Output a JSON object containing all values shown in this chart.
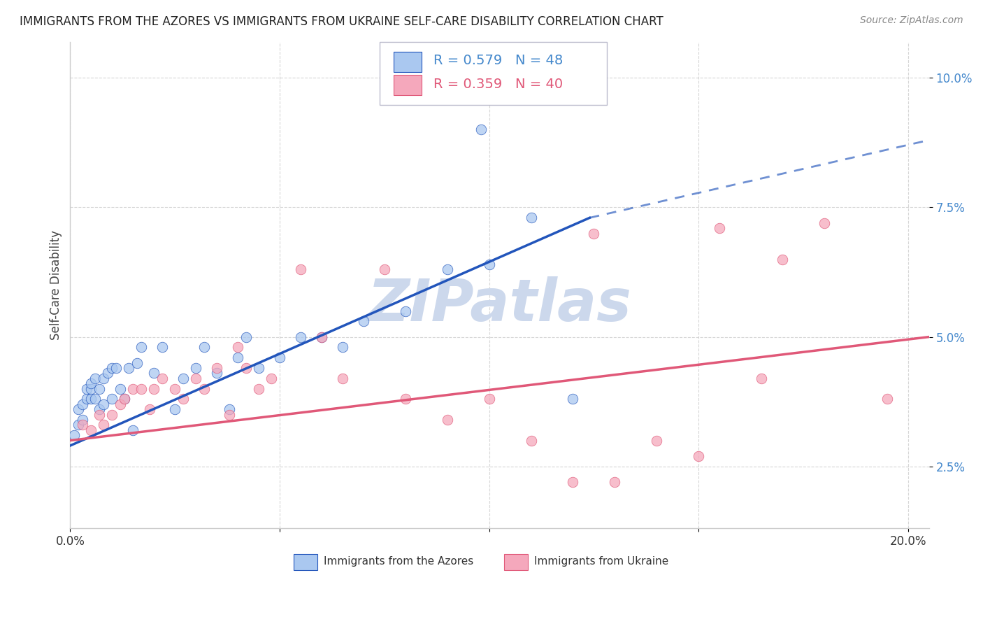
{
  "title": "IMMIGRANTS FROM THE AZORES VS IMMIGRANTS FROM UKRAINE SELF-CARE DISABILITY CORRELATION CHART",
  "source": "Source: ZipAtlas.com",
  "ylabel": "Self-Care Disability",
  "xlim": [
    0.0,
    0.205
  ],
  "ylim": [
    0.013,
    0.107
  ],
  "R_azores": 0.579,
  "N_azores": 48,
  "R_ukraine": 0.359,
  "N_ukraine": 40,
  "color_azores": "#aac8f0",
  "color_ukraine": "#f5a8bc",
  "line_color_azores": "#2255bb",
  "line_color_ukraine": "#e05878",
  "tick_label_color": "#4488cc",
  "watermark_color": "#ccd8ec",
  "background_color": "#ffffff",
  "grid_color": "#cccccc",
  "azores_line_start_x": 0.0,
  "azores_line_start_y": 0.029,
  "azores_line_solid_end_x": 0.124,
  "azores_line_solid_end_y": 0.073,
  "azores_line_dash_end_x": 0.205,
  "azores_line_dash_end_y": 0.088,
  "ukraine_line_start_x": 0.0,
  "ukraine_line_start_y": 0.03,
  "ukraine_line_end_x": 0.205,
  "ukraine_line_end_y": 0.05,
  "azores_x": [
    0.001,
    0.002,
    0.002,
    0.003,
    0.003,
    0.004,
    0.004,
    0.005,
    0.005,
    0.005,
    0.006,
    0.006,
    0.007,
    0.007,
    0.008,
    0.008,
    0.009,
    0.01,
    0.01,
    0.011,
    0.012,
    0.013,
    0.014,
    0.015,
    0.016,
    0.017,
    0.02,
    0.022,
    0.025,
    0.027,
    0.03,
    0.032,
    0.035,
    0.038,
    0.04,
    0.042,
    0.045,
    0.05,
    0.055,
    0.06,
    0.065,
    0.07,
    0.08,
    0.09,
    0.1,
    0.11,
    0.12,
    0.098
  ],
  "azores_y": [
    0.031,
    0.033,
    0.036,
    0.034,
    0.037,
    0.038,
    0.04,
    0.04,
    0.041,
    0.038,
    0.038,
    0.042,
    0.036,
    0.04,
    0.042,
    0.037,
    0.043,
    0.038,
    0.044,
    0.044,
    0.04,
    0.038,
    0.044,
    0.032,
    0.045,
    0.048,
    0.043,
    0.048,
    0.036,
    0.042,
    0.044,
    0.048,
    0.043,
    0.036,
    0.046,
    0.05,
    0.044,
    0.046,
    0.05,
    0.05,
    0.048,
    0.053,
    0.055,
    0.063,
    0.064,
    0.073,
    0.038,
    0.09
  ],
  "ukraine_x": [
    0.003,
    0.005,
    0.007,
    0.008,
    0.01,
    0.012,
    0.013,
    0.015,
    0.017,
    0.019,
    0.02,
    0.022,
    0.025,
    0.027,
    0.03,
    0.032,
    0.035,
    0.038,
    0.04,
    0.042,
    0.045,
    0.048,
    0.055,
    0.06,
    0.065,
    0.075,
    0.08,
    0.09,
    0.1,
    0.11,
    0.12,
    0.125,
    0.13,
    0.14,
    0.15,
    0.155,
    0.165,
    0.17,
    0.18,
    0.195
  ],
  "ukraine_y": [
    0.033,
    0.032,
    0.035,
    0.033,
    0.035,
    0.037,
    0.038,
    0.04,
    0.04,
    0.036,
    0.04,
    0.042,
    0.04,
    0.038,
    0.042,
    0.04,
    0.044,
    0.035,
    0.048,
    0.044,
    0.04,
    0.042,
    0.063,
    0.05,
    0.042,
    0.063,
    0.038,
    0.034,
    0.038,
    0.03,
    0.022,
    0.07,
    0.022,
    0.03,
    0.027,
    0.071,
    0.042,
    0.065,
    0.072,
    0.038
  ]
}
